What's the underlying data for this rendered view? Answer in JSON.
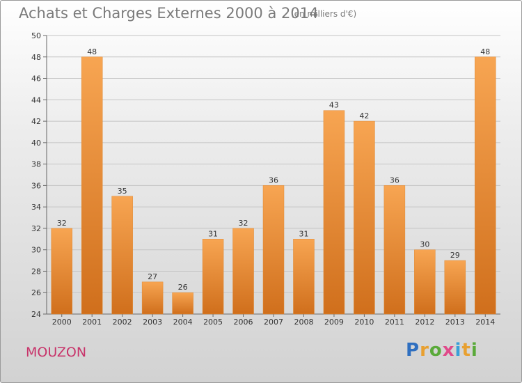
{
  "title": "Achats et Charges Externes 2000 à 2014",
  "subtitle": "(en milliers d'€)",
  "commune": "MOUZON",
  "logo": {
    "letters": [
      "P",
      "r",
      "o",
      "x",
      "i",
      "t",
      "i"
    ],
    "colors": [
      "#2f6fc0",
      "#e8a030",
      "#5aaa3a",
      "#e04a8a",
      "#3aa0d8",
      "#e8a030",
      "#5aaa3a"
    ]
  },
  "chart_data": {
    "type": "bar",
    "categories": [
      "2000",
      "2001",
      "2002",
      "2003",
      "2004",
      "2005",
      "2006",
      "2007",
      "2008",
      "2009",
      "2010",
      "2011",
      "2012",
      "2013",
      "2014"
    ],
    "values": [
      32,
      48,
      35,
      27,
      26,
      31,
      32,
      36,
      31,
      43,
      42,
      36,
      30,
      29,
      48
    ],
    "data_labels": [
      "32",
      "48",
      "35",
      "27",
      "26",
      "31",
      "32",
      "36",
      "31",
      "43",
      "42",
      "36",
      "30",
      "29",
      "48"
    ],
    "ylim": [
      24,
      50
    ],
    "yticks": [
      24,
      26,
      28,
      30,
      32,
      34,
      36,
      38,
      40,
      42,
      44,
      46,
      48,
      50
    ],
    "grid": true,
    "bar_color": "#f0943a",
    "bar_color_dark": "#d06f1c"
  }
}
